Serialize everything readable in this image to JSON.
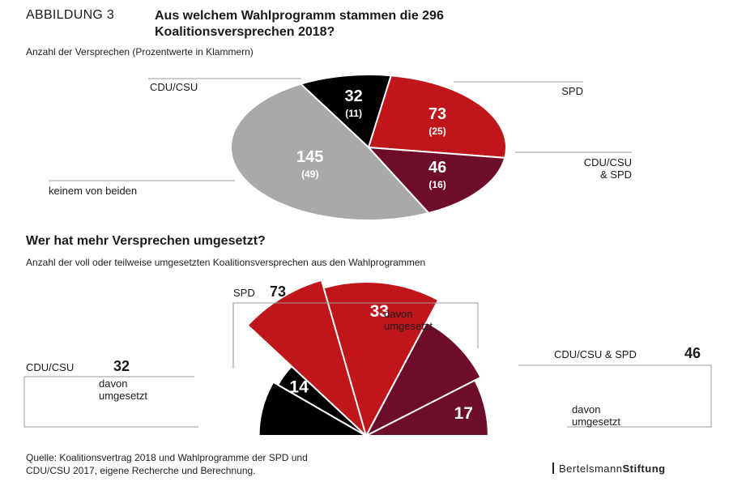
{
  "header": {
    "prefix": "ABBILDUNG 3",
    "title": "Aus welchem Wahlprogramm stammen die 296 Koalitionsversprechen 2018?"
  },
  "pie_subtitle": "Anzahl der Versprechen (Prozentwerte in Klammern)",
  "section2": {
    "title": "Wer hat mehr Versprechen umgesetzt?",
    "subtitle": "Anzahl der voll oder teilweise umgesetzten Koalitionsversprechen aus den Wahlprogrammen"
  },
  "footer": {
    "source_line1": "Quelle: Koalitionsvertrag 2018 und Wahlprogramme der SPD und",
    "source_line2": "CDU/CSU 2017, eigene Recherche und Berechnung.",
    "brand_regular": "Bertelsmann",
    "brand_bold": "Stiftung"
  },
  "colors": {
    "cdu": "#000000",
    "spd": "#c0161b",
    "both": "#6e0d2a",
    "none": "#a9a9a9",
    "line": "#9a9a9a"
  },
  "chart_data": [
    {
      "type": "pie",
      "slices": [
        {
          "label": "CDU/CSU",
          "value": 32,
          "percent": "(11)",
          "color": "#000000"
        },
        {
          "label": "SPD",
          "value": 73,
          "percent": "(25)",
          "color": "#c0161b"
        },
        {
          "label": "CDU/CSU & SPD",
          "value": 46,
          "percent": "(16)",
          "color": "#6e0d2a"
        },
        {
          "label": "keinem von beiden",
          "value": 145,
          "percent": "(49)",
          "color": "#a9a9a9"
        }
      ]
    },
    {
      "type": "bar",
      "groups": [
        {
          "label": "CDU/CSU",
          "total": 32,
          "implemented": 14,
          "implemented_label": "davon umgesetzt",
          "color": "#000000"
        },
        {
          "label": "SPD",
          "total": 73,
          "implemented": 33,
          "implemented_label": "davon umgesetzt",
          "color": "#c0161b"
        },
        {
          "label": "CDU/CSU & SPD",
          "total": 46,
          "implemented": 17,
          "implemented_label": "davon umgesetzt",
          "color": "#6e0d2a"
        }
      ]
    }
  ]
}
